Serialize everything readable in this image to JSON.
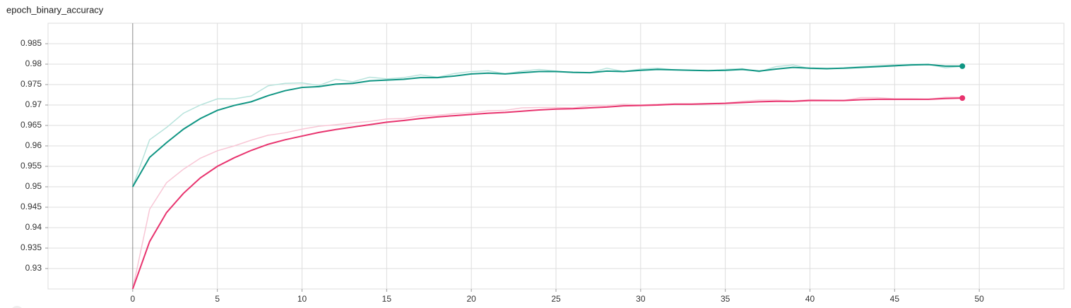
{
  "chart_data": {
    "type": "line",
    "title": "epoch_binary_accuracy",
    "x": [
      0,
      1,
      2,
      3,
      4,
      5,
      6,
      7,
      8,
      9,
      10,
      11,
      12,
      13,
      14,
      15,
      16,
      17,
      18,
      19,
      20,
      21,
      22,
      23,
      24,
      25,
      26,
      27,
      28,
      29,
      30,
      31,
      32,
      33,
      34,
      35,
      36,
      37,
      38,
      39,
      40,
      41,
      42,
      43,
      44,
      45,
      46,
      47,
      48,
      49
    ],
    "xlim": [
      -5,
      55
    ],
    "xticks": [
      0,
      5,
      10,
      15,
      20,
      25,
      30,
      35,
      40,
      45,
      50
    ],
    "ylim": [
      0.925,
      0.99
    ],
    "yticks": [
      0.93,
      0.935,
      0.94,
      0.945,
      0.95,
      0.955,
      0.96,
      0.965,
      0.97,
      0.975,
      0.98,
      0.985
    ],
    "grid": true,
    "series": [
      {
        "color": "#b7e3dc",
        "values": [
          0.95,
          0.9615,
          0.9645,
          0.968,
          0.97,
          0.9715,
          0.9715,
          0.9722,
          0.9747,
          0.9753,
          0.9754,
          0.9748,
          0.9763,
          0.9757,
          0.9768,
          0.9764,
          0.9767,
          0.9774,
          0.9768,
          0.9777,
          0.9782,
          0.9784,
          0.9776,
          0.9783,
          0.9787,
          0.9783,
          0.9779,
          0.9779,
          0.979,
          0.9782,
          0.9788,
          0.979,
          0.9786,
          0.9785,
          0.9784,
          0.9787,
          0.9789,
          0.9781,
          0.9794,
          0.9798,
          0.9789,
          0.9788,
          0.9791,
          0.9794,
          0.9796,
          0.9798,
          0.98,
          0.98,
          0.9791,
          0.9795
        ]
      },
      {
        "color": "#f8c6d5",
        "values": [
          0.925,
          0.9445,
          0.951,
          0.9543,
          0.957,
          0.9588,
          0.96,
          0.9614,
          0.9626,
          0.9632,
          0.9641,
          0.9648,
          0.9652,
          0.9656,
          0.966,
          0.9666,
          0.9667,
          0.9674,
          0.9675,
          0.9679,
          0.9681,
          0.9686,
          0.9687,
          0.9693,
          0.9694,
          0.9694,
          0.9693,
          0.9698,
          0.9699,
          0.9702,
          0.97,
          0.9702,
          0.9703,
          0.9703,
          0.9704,
          0.9705,
          0.9709,
          0.9712,
          0.9712,
          0.971,
          0.9713,
          0.9712,
          0.9711,
          0.9718,
          0.9718,
          0.9715,
          0.9715,
          0.9714,
          0.9719,
          0.9719
        ]
      },
      {
        "color": "#0f9583",
        "values": [
          0.95,
          0.9572,
          0.9608,
          0.9641,
          0.9667,
          0.9687,
          0.9699,
          0.9708,
          0.9723,
          0.9735,
          0.9743,
          0.9745,
          0.9751,
          0.9753,
          0.9759,
          0.9761,
          0.9763,
          0.9767,
          0.9767,
          0.9771,
          0.9776,
          0.9778,
          0.9776,
          0.9779,
          0.9782,
          0.9782,
          0.978,
          0.9779,
          0.9783,
          0.9782,
          0.9785,
          0.9787,
          0.9786,
          0.9785,
          0.9784,
          0.9785,
          0.9787,
          0.9783,
          0.9788,
          0.9792,
          0.979,
          0.9789,
          0.979,
          0.9792,
          0.9794,
          0.9796,
          0.9798,
          0.9799,
          0.9795,
          0.9795
        ]
      },
      {
        "color": "#e8336e",
        "values": [
          0.925,
          0.9366,
          0.9437,
          0.9484,
          0.9522,
          0.955,
          0.9571,
          0.9589,
          0.9604,
          0.9615,
          0.9624,
          0.9633,
          0.964,
          0.9646,
          0.9652,
          0.9658,
          0.9662,
          0.9667,
          0.9671,
          0.9674,
          0.9677,
          0.968,
          0.9682,
          0.9685,
          0.9688,
          0.969,
          0.9691,
          0.9693,
          0.9695,
          0.9698,
          0.9699,
          0.97,
          0.9702,
          0.9702,
          0.9703,
          0.9704,
          0.9706,
          0.9708,
          0.9709,
          0.9709,
          0.9711,
          0.9711,
          0.9711,
          0.9713,
          0.9714,
          0.9714,
          0.9714,
          0.9714,
          0.9716,
          0.9717
        ]
      }
    ]
  }
}
